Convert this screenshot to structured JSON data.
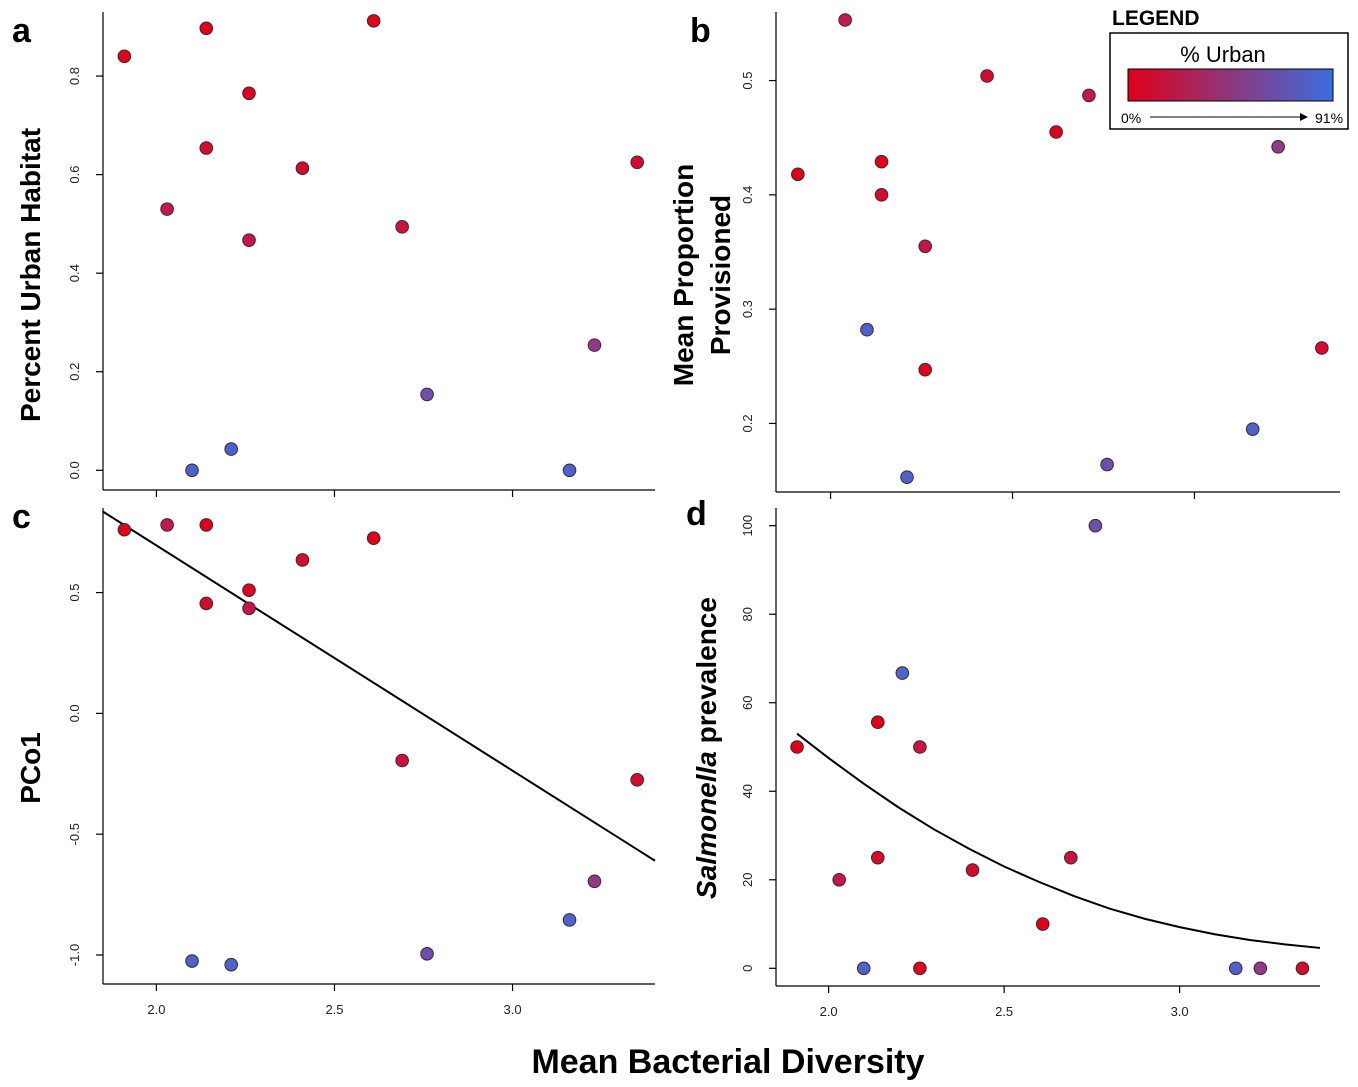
{
  "figure": {
    "xlabel": "Mean Bacterial Diversity",
    "legend": {
      "title": "LEGEND",
      "subtitle": "% Urban",
      "min_label": "0%",
      "max_label": "91%",
      "color_low": "#e0001a",
      "color_high": "#3a6ee0"
    }
  },
  "chart_data": [
    {
      "type": "scatter",
      "panel": "a",
      "ylabel": "Percent Urban Habitat",
      "xlim": [
        1.85,
        3.4
      ],
      "ylim": [
        -0.04,
        0.93
      ],
      "xticks": [
        2.0,
        2.5,
        3.0
      ],
      "xticklabels": [
        "",
        "",
        ""
      ],
      "yticks": [
        0.0,
        0.2,
        0.4,
        0.6,
        0.8
      ],
      "yticklabels": [
        "0.0",
        "0.2",
        "0.4",
        "0.6",
        "0.8"
      ],
      "points": [
        {
          "x": 1.91,
          "y": 0.84,
          "urban": 0.0
        },
        {
          "x": 2.14,
          "y": 0.897,
          "urban": 0.0
        },
        {
          "x": 2.61,
          "y": 0.912,
          "urban": 0.0
        },
        {
          "x": 2.26,
          "y": 0.765,
          "urban": 0.05
        },
        {
          "x": 2.14,
          "y": 0.654,
          "urban": 0.12
        },
        {
          "x": 2.41,
          "y": 0.613,
          "urban": 0.12
        },
        {
          "x": 3.35,
          "y": 0.625,
          "urban": 0.12
        },
        {
          "x": 2.03,
          "y": 0.53,
          "urban": 0.3
        },
        {
          "x": 2.26,
          "y": 0.467,
          "urban": 0.28
        },
        {
          "x": 2.69,
          "y": 0.494,
          "urban": 0.22
        },
        {
          "x": 3.23,
          "y": 0.254,
          "urban": 0.62
        },
        {
          "x": 2.76,
          "y": 0.154,
          "urban": 0.78
        },
        {
          "x": 2.21,
          "y": 0.043,
          "urban": 0.91
        },
        {
          "x": 2.1,
          "y": 0.0,
          "urban": 0.91
        },
        {
          "x": 3.16,
          "y": 0.0,
          "urban": 0.91
        }
      ]
    },
    {
      "type": "scatter",
      "panel": "b",
      "ylabel": "Mean Proportion Provisioned",
      "xlim": [
        1.85,
        3.4
      ],
      "ylim": [
        0.14,
        0.56
      ],
      "xticks": [
        2.0,
        2.5,
        3.0
      ],
      "xticklabels": [
        "",
        "",
        ""
      ],
      "yticks": [
        0.2,
        0.3,
        0.4,
        0.5
      ],
      "yticklabels": [
        "0.2",
        "0.3",
        "0.4",
        "0.5"
      ],
      "points": [
        {
          "x": 2.04,
          "y": 0.553,
          "urban": 0.3
        },
        {
          "x": 2.43,
          "y": 0.504,
          "urban": 0.12
        },
        {
          "x": 2.71,
          "y": 0.487,
          "urban": 0.28
        },
        {
          "x": 2.62,
          "y": 0.455,
          "urban": 0.0
        },
        {
          "x": 3.23,
          "y": 0.442,
          "urban": 0.62
        },
        {
          "x": 2.14,
          "y": 0.429,
          "urban": 0.0
        },
        {
          "x": 1.91,
          "y": 0.418,
          "urban": 0.0
        },
        {
          "x": 2.14,
          "y": 0.4,
          "urban": 0.12
        },
        {
          "x": 2.26,
          "y": 0.355,
          "urban": 0.28
        },
        {
          "x": 2.1,
          "y": 0.282,
          "urban": 0.91
        },
        {
          "x": 3.35,
          "y": 0.266,
          "urban": 0.12
        },
        {
          "x": 2.26,
          "y": 0.247,
          "urban": 0.05
        },
        {
          "x": 3.16,
          "y": 0.195,
          "urban": 0.91
        },
        {
          "x": 2.76,
          "y": 0.164,
          "urban": 0.78
        },
        {
          "x": 2.21,
          "y": 0.153,
          "urban": 0.91
        }
      ]
    },
    {
      "type": "scatter",
      "panel": "c",
      "ylabel": "PCo1",
      "xlim": [
        1.85,
        3.4
      ],
      "ylim": [
        -1.12,
        0.85
      ],
      "xticks": [
        2.0,
        2.5,
        3.0
      ],
      "xticklabels": [
        "2.0",
        "2.5",
        "3.0"
      ],
      "yticks": [
        -1.0,
        -0.5,
        0.0,
        0.5
      ],
      "yticklabels": [
        "-1.0",
        "-0.5",
        "0.0",
        "0.5"
      ],
      "points": [
        {
          "x": 1.91,
          "y": 0.76,
          "urban": 0.0
        },
        {
          "x": 2.03,
          "y": 0.78,
          "urban": 0.3
        },
        {
          "x": 2.14,
          "y": 0.78,
          "urban": 0.0
        },
        {
          "x": 2.61,
          "y": 0.725,
          "urban": 0.0
        },
        {
          "x": 2.41,
          "y": 0.635,
          "urban": 0.12
        },
        {
          "x": 2.26,
          "y": 0.51,
          "urban": 0.05
        },
        {
          "x": 2.14,
          "y": 0.455,
          "urban": 0.12
        },
        {
          "x": 2.26,
          "y": 0.435,
          "urban": 0.28
        },
        {
          "x": 2.69,
          "y": -0.195,
          "urban": 0.22
        },
        {
          "x": 3.35,
          "y": -0.275,
          "urban": 0.12
        },
        {
          "x": 3.23,
          "y": -0.695,
          "urban": 0.62
        },
        {
          "x": 3.16,
          "y": -0.855,
          "urban": 0.91
        },
        {
          "x": 2.76,
          "y": -0.995,
          "urban": 0.78
        },
        {
          "x": 2.1,
          "y": -1.025,
          "urban": 0.91
        },
        {
          "x": 2.21,
          "y": -1.04,
          "urban": 0.91
        }
      ],
      "fit_line": {
        "x": [
          1.85,
          3.4
        ],
        "y": [
          0.835,
          -0.61
        ]
      }
    },
    {
      "type": "scatter",
      "panel": "d",
      "ylabel_italic": "Salmonella",
      "ylabel": "prevalence",
      "xlim": [
        1.85,
        3.4
      ],
      "ylim": [
        -4,
        104
      ],
      "xticks": [
        2.0,
        2.5,
        3.0
      ],
      "xticklabels": [
        "2.0",
        "2.5",
        "3.0"
      ],
      "yticks": [
        0,
        20,
        40,
        60,
        80,
        100
      ],
      "yticklabels": [
        "0",
        "20",
        "40",
        "60",
        "80",
        "100"
      ],
      "points": [
        {
          "x": 2.76,
          "y": 100,
          "urban": 0.78
        },
        {
          "x": 2.21,
          "y": 66.7,
          "urban": 0.91
        },
        {
          "x": 2.14,
          "y": 55.6,
          "urban": 0.0
        },
        {
          "x": 1.91,
          "y": 50,
          "urban": 0.0
        },
        {
          "x": 2.26,
          "y": 50,
          "urban": 0.28
        },
        {
          "x": 2.14,
          "y": 25,
          "urban": 0.12
        },
        {
          "x": 2.69,
          "y": 25,
          "urban": 0.22
        },
        {
          "x": 2.41,
          "y": 22.2,
          "urban": 0.12
        },
        {
          "x": 2.03,
          "y": 20,
          "urban": 0.3
        },
        {
          "x": 2.61,
          "y": 10,
          "urban": 0.0
        },
        {
          "x": 2.1,
          "y": 0,
          "urban": 0.91
        },
        {
          "x": 2.26,
          "y": 0,
          "urban": 0.05
        },
        {
          "x": 3.16,
          "y": 0,
          "urban": 0.91
        },
        {
          "x": 3.23,
          "y": 0,
          "urban": 0.62
        },
        {
          "x": 3.35,
          "y": 0,
          "urban": 0.12
        }
      ],
      "fit_curve": {
        "x": [
          1.91,
          2.0,
          2.1,
          2.2,
          2.3,
          2.4,
          2.5,
          2.6,
          2.7,
          2.8,
          2.9,
          3.0,
          3.1,
          3.2,
          3.3,
          3.4
        ],
        "y": [
          53,
          47.5,
          41.7,
          36.3,
          31.4,
          27,
          23,
          19.5,
          16.3,
          13.5,
          11.2,
          9.3,
          7.7,
          6.4,
          5.4,
          4.6
        ]
      }
    }
  ]
}
